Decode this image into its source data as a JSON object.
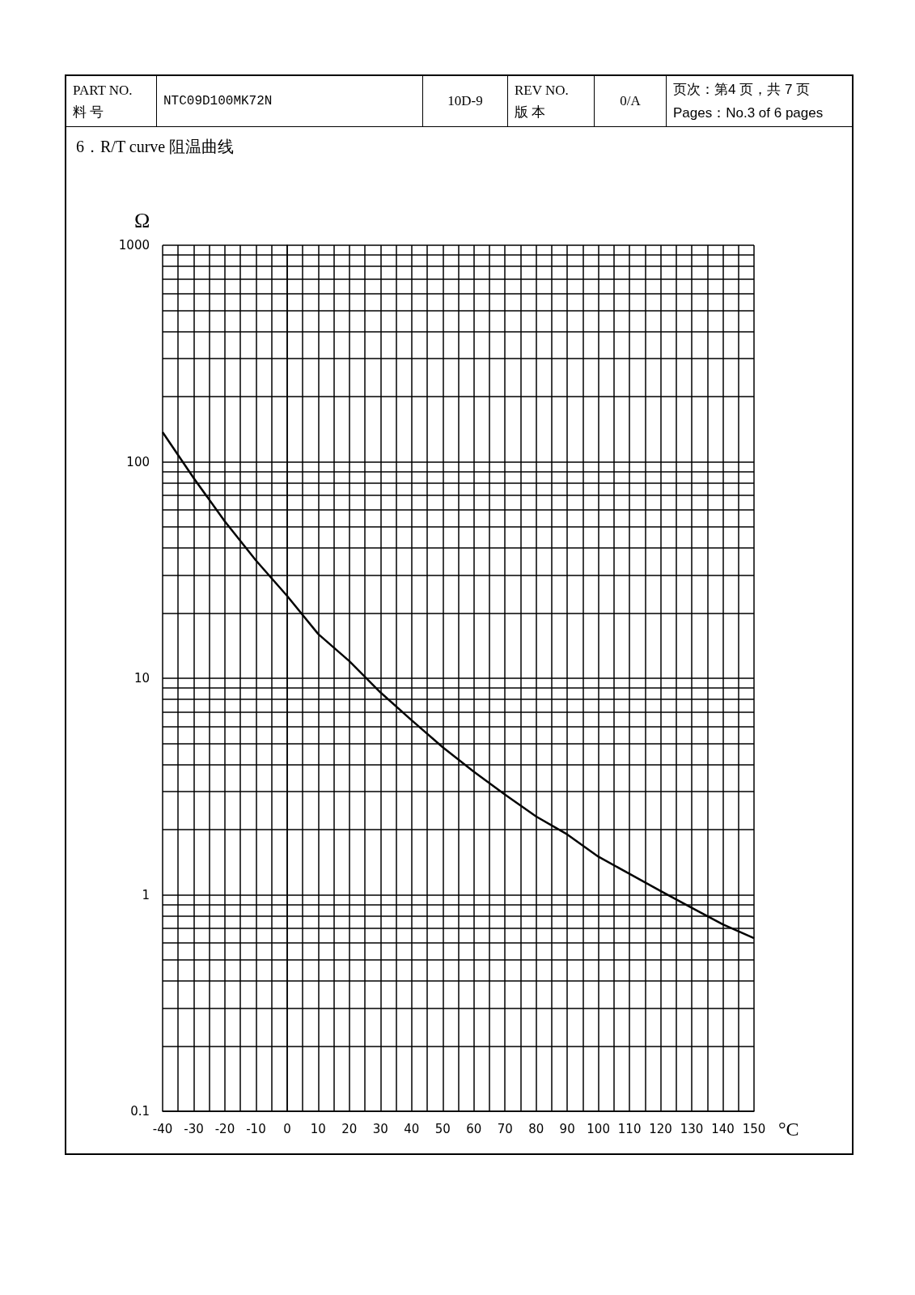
{
  "chart_data": {
    "type": "line",
    "title": "6．R/T curve 阻温曲线",
    "xlabel": "°C",
    "ylabel": "Ω",
    "annotations": [
      "PART NO.",
      "料 号",
      "NTC09D100MK72N",
      "10D-9",
      "REV NO.",
      "版 本",
      "0/A",
      "页次：第4 页，共 7 页",
      "Pages：No.3 of 6 pages"
    ],
    "x": [
      -40,
      -30,
      -20,
      -10,
      0,
      10,
      20,
      30,
      40,
      50,
      60,
      70,
      80,
      90,
      100,
      110,
      120,
      130,
      140,
      150
    ],
    "series": [
      {
        "color": "#000000",
        "values": [
          137,
          84,
          53,
          35,
          24,
          16,
          12,
          8.6,
          6.4,
          4.8,
          3.7,
          2.9,
          2.3,
          1.9,
          1.5,
          1.25,
          1.04,
          0.87,
          0.73,
          0.63
        ]
      }
    ],
    "log": "y",
    "grid": true,
    "marker": "none",
    "line_style": "solid",
    "xlim": [
      -40,
      150
    ],
    "xticks": [
      -40,
      {
        "value": -35,
        "label": null
      },
      -30,
      {
        "value": -25,
        "label": null
      },
      -20,
      {
        "value": -15,
        "label": null
      },
      -10,
      {
        "value": -5,
        "label": null
      },
      0,
      {
        "value": 5,
        "label": null
      },
      10,
      {
        "value": 15,
        "label": null
      },
      20,
      {
        "value": 25,
        "label": null
      },
      30,
      {
        "value": 35,
        "label": null
      },
      40,
      {
        "value": 45,
        "label": null
      },
      50,
      {
        "value": 55,
        "label": null
      },
      60,
      {
        "value": 65,
        "label": null
      },
      70,
      {
        "value": 75,
        "label": null
      },
      80,
      {
        "value": 85,
        "label": null
      },
      90,
      {
        "value": 95,
        "label": null
      },
      100,
      {
        "value": 105,
        "label": null
      },
      110,
      {
        "value": 115,
        "label": null
      },
      120,
      {
        "value": 125,
        "label": null
      },
      130,
      {
        "value": 135,
        "label": null
      },
      140,
      {
        "value": 145,
        "label": null
      },
      150
    ],
    "ylim": [
      0.1,
      1000
    ],
    "yticks": [
      0.1,
      {
        "value": 0.2,
        "label": null
      },
      {
        "value": 0.3,
        "label": null
      },
      {
        "value": 0.4,
        "label": null
      },
      {
        "value": 0.5,
        "label": null
      },
      {
        "value": 0.6,
        "label": null
      },
      {
        "value": 0.7,
        "label": null
      },
      {
        "value": 0.8,
        "label": null
      },
      {
        "value": 0.9,
        "label": null
      },
      1,
      {
        "value": 2,
        "label": null
      },
      {
        "value": 3,
        "label": null
      },
      {
        "value": 4,
        "label": null
      },
      {
        "value": 5,
        "label": null
      },
      {
        "value": 6,
        "label": null
      },
      {
        "value": 7,
        "label": null
      },
      {
        "value": 8,
        "label": null
      },
      {
        "value": 9,
        "label": null
      },
      10,
      {
        "value": 20,
        "label": null
      },
      {
        "value": 30,
        "label": null
      },
      {
        "value": 40,
        "label": null
      },
      {
        "value": 50,
        "label": null
      },
      {
        "value": 60,
        "label": null
      },
      {
        "value": 70,
        "label": null
      },
      {
        "value": 80,
        "label": null
      },
      {
        "value": 90,
        "label": null
      },
      100,
      {
        "value": 200,
        "label": null
      },
      {
        "value": 300,
        "label": null
      },
      {
        "value": 400,
        "label": null
      },
      {
        "value": 500,
        "label": null
      },
      {
        "value": 600,
        "label": null
      },
      {
        "value": 700,
        "label": null
      },
      {
        "value": 800,
        "label": null
      },
      {
        "value": 900,
        "label": null
      },
      1000
    ]
  }
}
